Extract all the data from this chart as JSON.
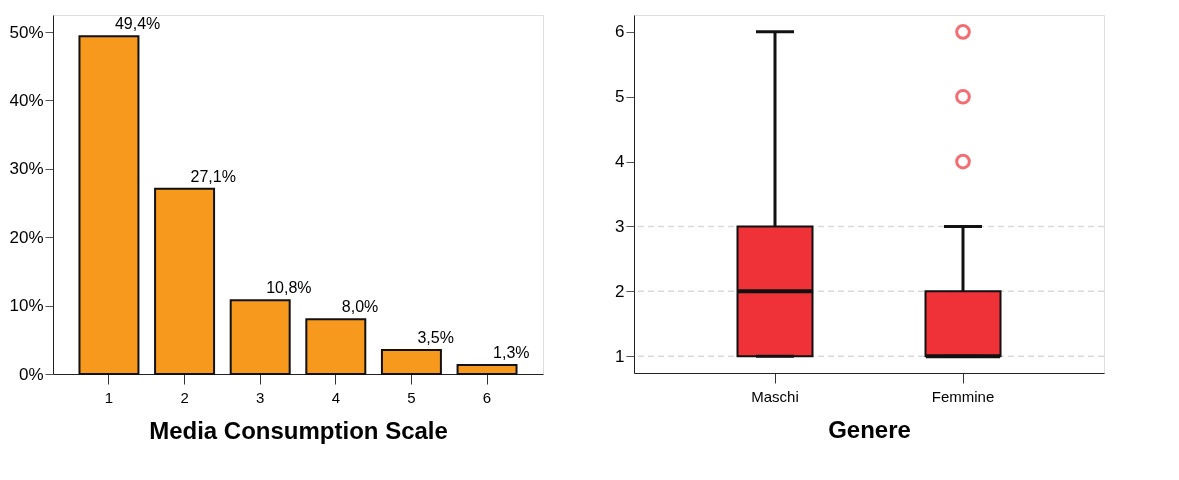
{
  "chart_data": [
    {
      "type": "bar",
      "xlabel": "Media Consumption Scale",
      "categories": [
        "1",
        "2",
        "3",
        "4",
        "5",
        "6"
      ],
      "values": [
        49.4,
        27.1,
        10.8,
        8.0,
        3.5,
        1.3
      ],
      "color": "#f7991c",
      "value_labels": [
        "49,4%",
        "27,1%",
        "10,8%",
        "8,0%",
        "3,5%",
        "1,3%"
      ],
      "ylim": [
        0,
        52.5
      ],
      "yticks": [
        {
          "value": 0,
          "label": "0%"
        },
        {
          "value": 10,
          "label": "10%"
        },
        {
          "value": 20,
          "label": "20%"
        },
        {
          "value": 30,
          "label": "30%"
        },
        {
          "value": 40,
          "label": "40%"
        },
        {
          "value": 50,
          "label": "50%"
        }
      ]
    },
    {
      "type": "box",
      "xlabel": "Genere",
      "categories": [
        "Maschi",
        "Femmine"
      ],
      "color": "#ee3238",
      "boxes": [
        {
          "low": 1,
          "q1": 1,
          "median": 2,
          "q3": 3,
          "high": 6
        },
        {
          "low": 1,
          "q1": 1,
          "median": 1,
          "q3": 2,
          "high": 3,
          "outliers": [
            4,
            5,
            6
          ]
        }
      ],
      "ylim": [
        0.74,
        6.26
      ],
      "yticks": [
        1,
        2,
        3,
        4,
        5,
        6
      ],
      "ref_lines": [
        {
          "axis": "y",
          "value": 1,
          "color": "#d9d9d9",
          "line_style": "dashed"
        },
        {
          "axis": "y",
          "value": 2,
          "color": "#d9d9d9",
          "line_style": "dashed"
        },
        {
          "axis": "y",
          "value": 3,
          "color": "#d9d9d9",
          "line_style": "dashed"
        }
      ]
    }
  ]
}
